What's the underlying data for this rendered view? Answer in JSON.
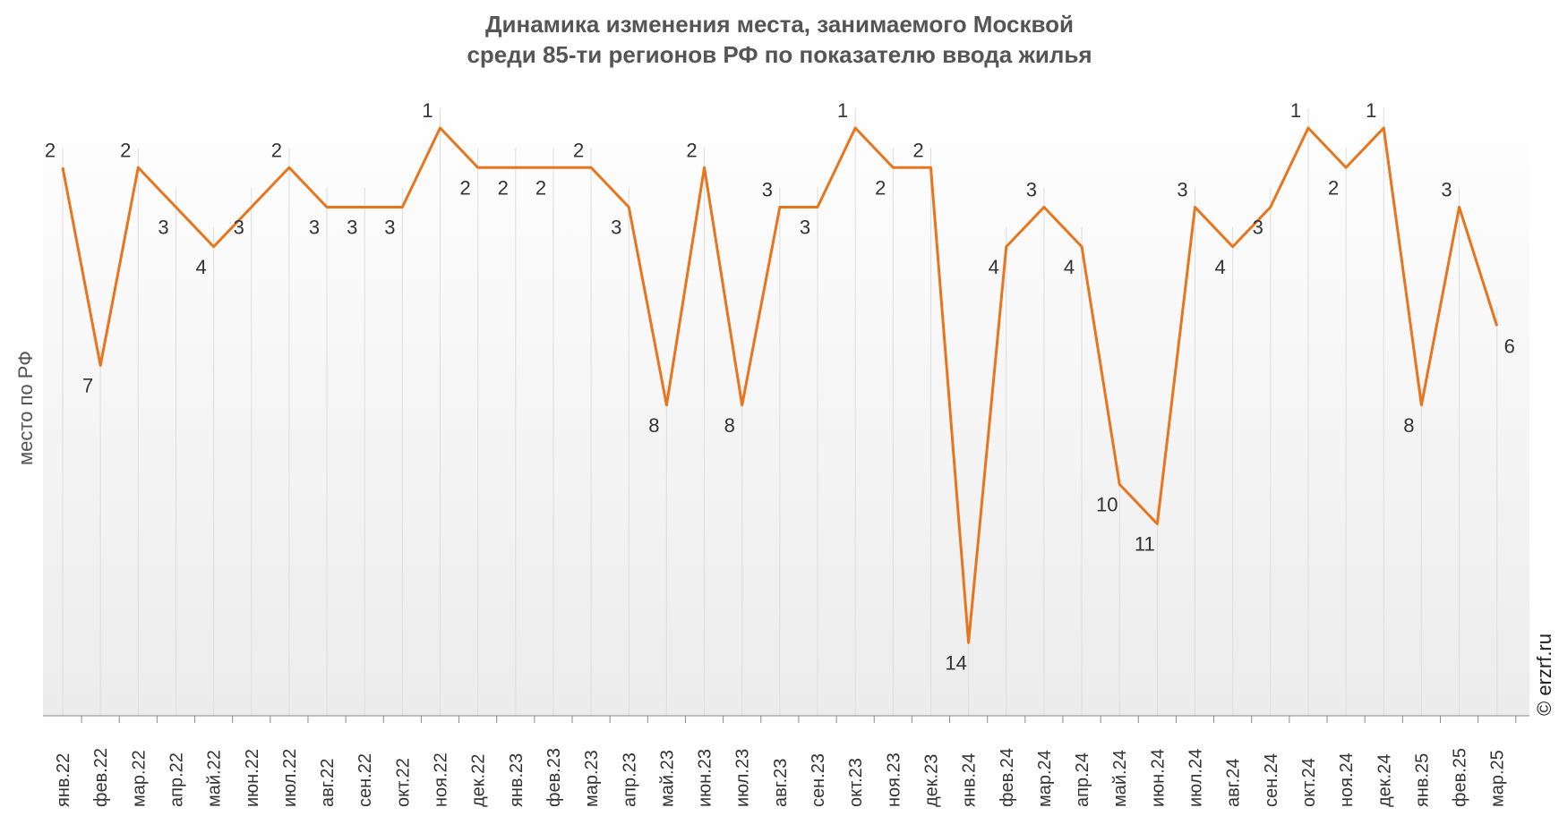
{
  "chart_data": {
    "type": "line",
    "title_line1": "Динамика изменения места, занимаемого Москвой",
    "title_line2": "среди 85-ти регионов РФ по показателю ввода жилья",
    "xlabel": "",
    "ylabel": "место по РФ",
    "y_inverted": true,
    "ylim": [
      0,
      15
    ],
    "grid": "vertical",
    "line_color": "#E8741C",
    "categories": [
      "янв.22",
      "фев.22",
      "мар.22",
      "апр.22",
      "май.22",
      "июн.22",
      "июл.22",
      "авг.22",
      "сен.22",
      "окт.22",
      "ноя.22",
      "дек.22",
      "янв.23",
      "фев.23",
      "мар.23",
      "апр.23",
      "май.23",
      "июн.23",
      "июл.23",
      "авг.23",
      "сен.23",
      "окт.23",
      "ноя.23",
      "дек.23",
      "янв.24",
      "фев.24",
      "мар.24",
      "апр.24",
      "май.24",
      "июн.24",
      "июл.24",
      "авг.24",
      "сен.24",
      "окт.24",
      "ноя.24",
      "дек.24",
      "янв.25",
      "фев.25",
      "мар.25"
    ],
    "series": [
      {
        "values": [
          2,
          7,
          2,
          3,
          4,
          3,
          2,
          3,
          3,
          3,
          1,
          2,
          2,
          2,
          2,
          3,
          8,
          2,
          8,
          3,
          3,
          1,
          2,
          2,
          14,
          4,
          3,
          4,
          10,
          11,
          3,
          4,
          3,
          1,
          2,
          1,
          8,
          3,
          6
        ]
      }
    ]
  },
  "watermark": "© erzrf.ru"
}
